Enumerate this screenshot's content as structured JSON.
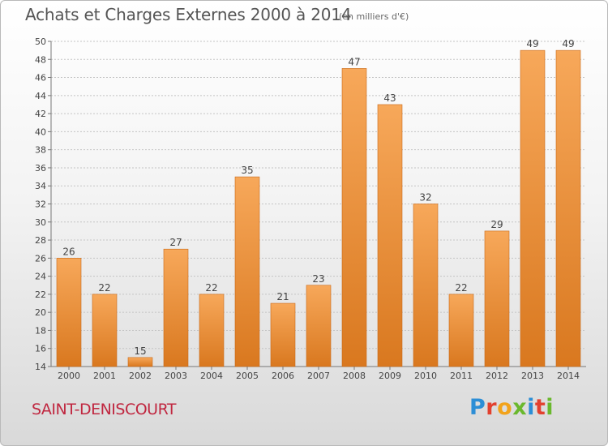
{
  "header": {
    "title": "Achats et Charges Externes 2000 à 2014",
    "subtitle": "(en milliers d'€)"
  },
  "footer": {
    "commune": "SAINT-DENISCOURT",
    "logo_text": "Proxiti",
    "logo_colors": [
      "#2c8ed6",
      "#e2412f",
      "#f2a31b",
      "#6ab82d",
      "#2c8ed6",
      "#e2412f",
      "#6ab82d"
    ]
  },
  "colors": {
    "bar_light": "#f7a85a",
    "bar_dark": "#d9781f",
    "bar_edge": "#c8691a",
    "grid": "#c4c4c4",
    "text": "#444444"
  },
  "chart_data": {
    "type": "bar",
    "title": "Achats et Charges Externes 2000 à 2014",
    "subtitle": "(en milliers d'€)",
    "categories": [
      "2000",
      "2001",
      "2002",
      "2003",
      "2004",
      "2005",
      "2006",
      "2007",
      "2008",
      "2009",
      "2010",
      "2011",
      "2012",
      "2013",
      "2014"
    ],
    "values": [
      26,
      22,
      15,
      27,
      22,
      35,
      21,
      23,
      47,
      43,
      32,
      22,
      29,
      49,
      49
    ],
    "ylim": [
      14,
      50
    ],
    "yticks": [
      14,
      16,
      18,
      20,
      22,
      24,
      26,
      28,
      30,
      32,
      34,
      36,
      38,
      40,
      42,
      44,
      46,
      48,
      50
    ],
    "xlabel": "",
    "ylabel": "",
    "grid": true,
    "legend": "none"
  }
}
